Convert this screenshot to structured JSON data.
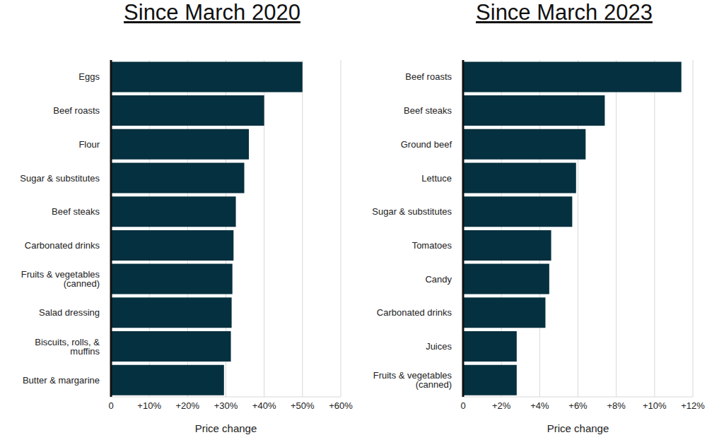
{
  "chart_data": [
    {
      "type": "bar",
      "orientation": "horizontal",
      "title": "Since March 2020",
      "x_label": "Price change",
      "categories": [
        "Eggs",
        "Beef roasts",
        "Flour",
        "Sugar & substitutes",
        "Beef steaks",
        "Carbonated drinks",
        "Fruits & vegetables (canned)",
        "Salad dressing",
        "Biscuits, rolls, & muffins",
        "Butter & margarine"
      ],
      "values": [
        50,
        40,
        36,
        34.8,
        32.6,
        32,
        31.7,
        31.5,
        31.3,
        29.5
      ],
      "color": "#05303f",
      "xlim": [
        0,
        60
      ],
      "xticks": [
        0,
        {
          "value": 10,
          "label": "+10%"
        },
        {
          "value": 20,
          "label": "+20%"
        },
        {
          "value": 30,
          "label": "+30%"
        },
        {
          "value": 40,
          "label": "+40%"
        },
        {
          "value": 50,
          "label": "+50%"
        },
        {
          "value": 60,
          "label": "+60%"
        }
      ],
      "grid": true
    },
    {
      "type": "bar",
      "orientation": "horizontal",
      "title": "Since March 2023",
      "x_label": "Price change",
      "categories": [
        "Beef roasts",
        "Beef steaks",
        "Ground beef",
        "Lettuce",
        "Sugar & substitutes",
        "Tomatoes",
        "Candy",
        "Carbonated drinks",
        "Juices",
        "Fruits & vegetables (canned)"
      ],
      "values": [
        11.4,
        7.4,
        6.4,
        5.9,
        5.7,
        4.6,
        4.5,
        4.3,
        2.8,
        2.8
      ],
      "color": "#05303f",
      "xlim": [
        0,
        12
      ],
      "xticks": [
        0,
        {
          "value": 2,
          "label": "+2%"
        },
        {
          "value": 4,
          "label": "+4%"
        },
        {
          "value": 6,
          "label": "+6%"
        },
        {
          "value": 8,
          "label": "+8%"
        },
        {
          "value": 10,
          "label": "+10%"
        },
        {
          "value": 12,
          "label": "+12%"
        }
      ],
      "grid": true
    }
  ]
}
